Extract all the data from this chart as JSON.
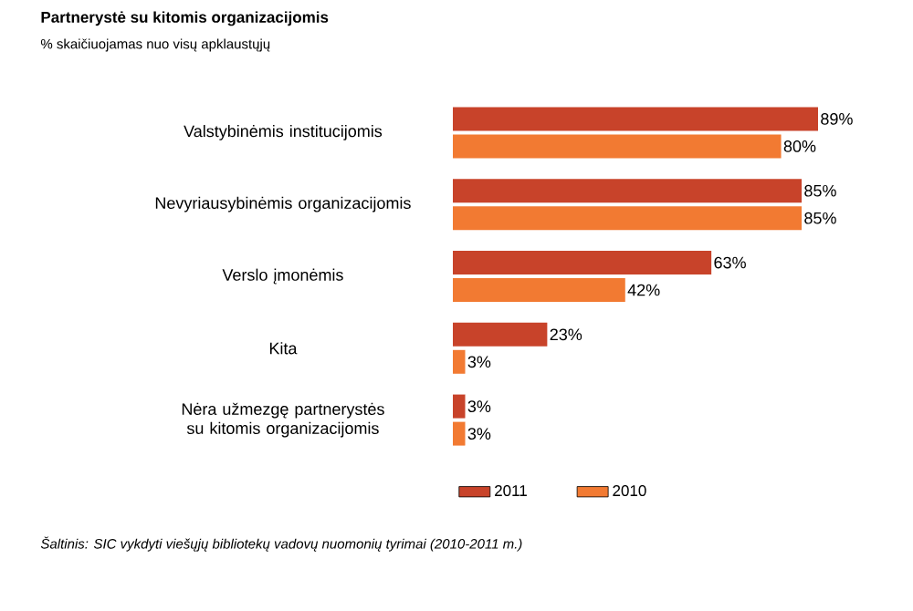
{
  "chart_data": {
    "type": "bar",
    "orientation": "horizontal",
    "title": "Partnerystė su kitomis organizacijomis",
    "subtitle": "% skaičiuojamas nuo visų apklaustųjų",
    "categories": [
      "Valstybinėmis institucijomis",
      "Nevyriausybinėmis organizacijomis",
      "Verslo įmonėmis",
      "Kita",
      "Nėra užmezgę partnerystės su kitomis organizacijomis"
    ],
    "series": [
      {
        "name": "2011",
        "color": "#c8432a",
        "values": [
          89,
          85,
          63,
          23,
          3
        ],
        "value_labels": [
          "89%",
          "85%",
          "63%",
          "23%",
          "3%"
        ]
      },
      {
        "name": "2010",
        "color": "#f27a32",
        "values": [
          80,
          85,
          42,
          3,
          3
        ],
        "value_labels": [
          "80%",
          "85%",
          "42%",
          "3%",
          "3%"
        ]
      }
    ],
    "legend": "bottom",
    "annotations": [
      "Šaltinis: SIC vykdyti viešųjų bibliotekų vadovų nuomonių tyrimai (2010-2011 m.)"
    ]
  }
}
